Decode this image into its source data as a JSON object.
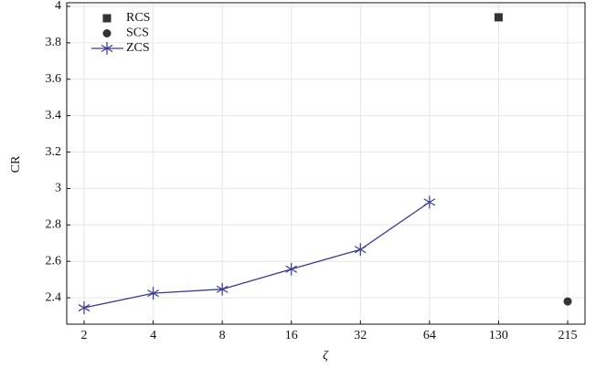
{
  "chart_data": {
    "type": "line",
    "x_label": "ζ",
    "y_label": "CR",
    "categories": [
      "2",
      "4",
      "8",
      "16",
      "32",
      "64",
      "130",
      "215"
    ],
    "series": [
      {
        "name": "RCS",
        "color": "#333333",
        "marker": "square",
        "line": false,
        "values": [
          null,
          null,
          null,
          null,
          null,
          null,
          3.94,
          null
        ]
      },
      {
        "name": "SCS",
        "color": "#333333",
        "marker": "circle",
        "line": false,
        "values": [
          null,
          null,
          null,
          null,
          null,
          null,
          null,
          2.38
        ]
      },
      {
        "name": "ZCS",
        "color": "#3a3a99",
        "marker": "star",
        "line": true,
        "values": [
          2.345,
          2.425,
          2.447,
          2.557,
          2.665,
          2.925,
          null,
          null
        ]
      }
    ],
    "ylim": [
      2.255,
      4.02
    ],
    "yticks": [
      2.4,
      2.6,
      2.8,
      3,
      3.2,
      3.4,
      3.6,
      3.8,
      4
    ],
    "grid": true,
    "legend": "top-left"
  }
}
